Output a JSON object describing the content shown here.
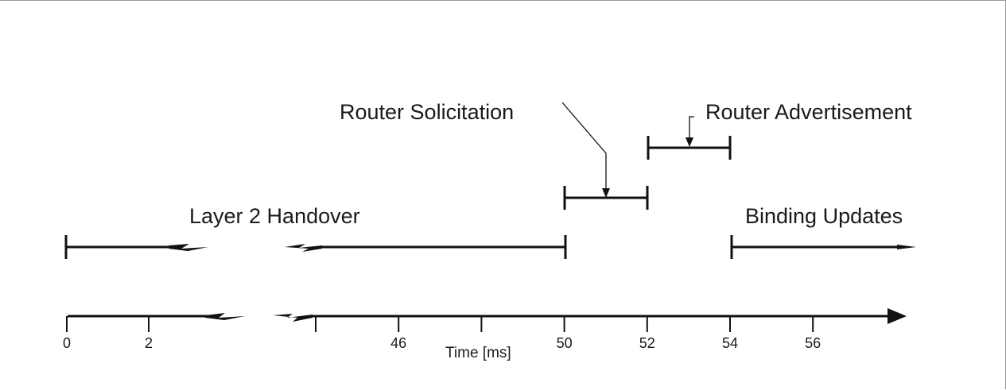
{
  "labels": {
    "router_solicitation": "Router Solicitation",
    "router_advertisement": "Router Advertisement",
    "layer2_handover": "Layer 2 Handover",
    "binding_updates": "Binding Updates"
  },
  "axis": {
    "title": "Time [ms]",
    "ticks": [
      {
        "value": 0,
        "label": "0"
      },
      {
        "value": 2,
        "label": "2"
      },
      {
        "value": 44,
        "label": ""
      },
      {
        "value": 46,
        "label": "46"
      },
      {
        "value": 48,
        "label": ""
      },
      {
        "value": 50,
        "label": "50"
      },
      {
        "value": 52,
        "label": "52"
      },
      {
        "value": 54,
        "label": "54"
      },
      {
        "value": 56,
        "label": "56"
      }
    ]
  },
  "intervals": [
    {
      "id": "layer2-handover",
      "start_ms": 0,
      "end_ms": 50,
      "broken": true
    },
    {
      "id": "router-solicitation",
      "start_ms": 50,
      "end_ms": 52
    },
    {
      "id": "router-advertisement",
      "start_ms": 52,
      "end_ms": 54
    },
    {
      "id": "binding-updates",
      "start_ms": 54,
      "end_ms": null,
      "open_ended": true
    }
  ]
}
